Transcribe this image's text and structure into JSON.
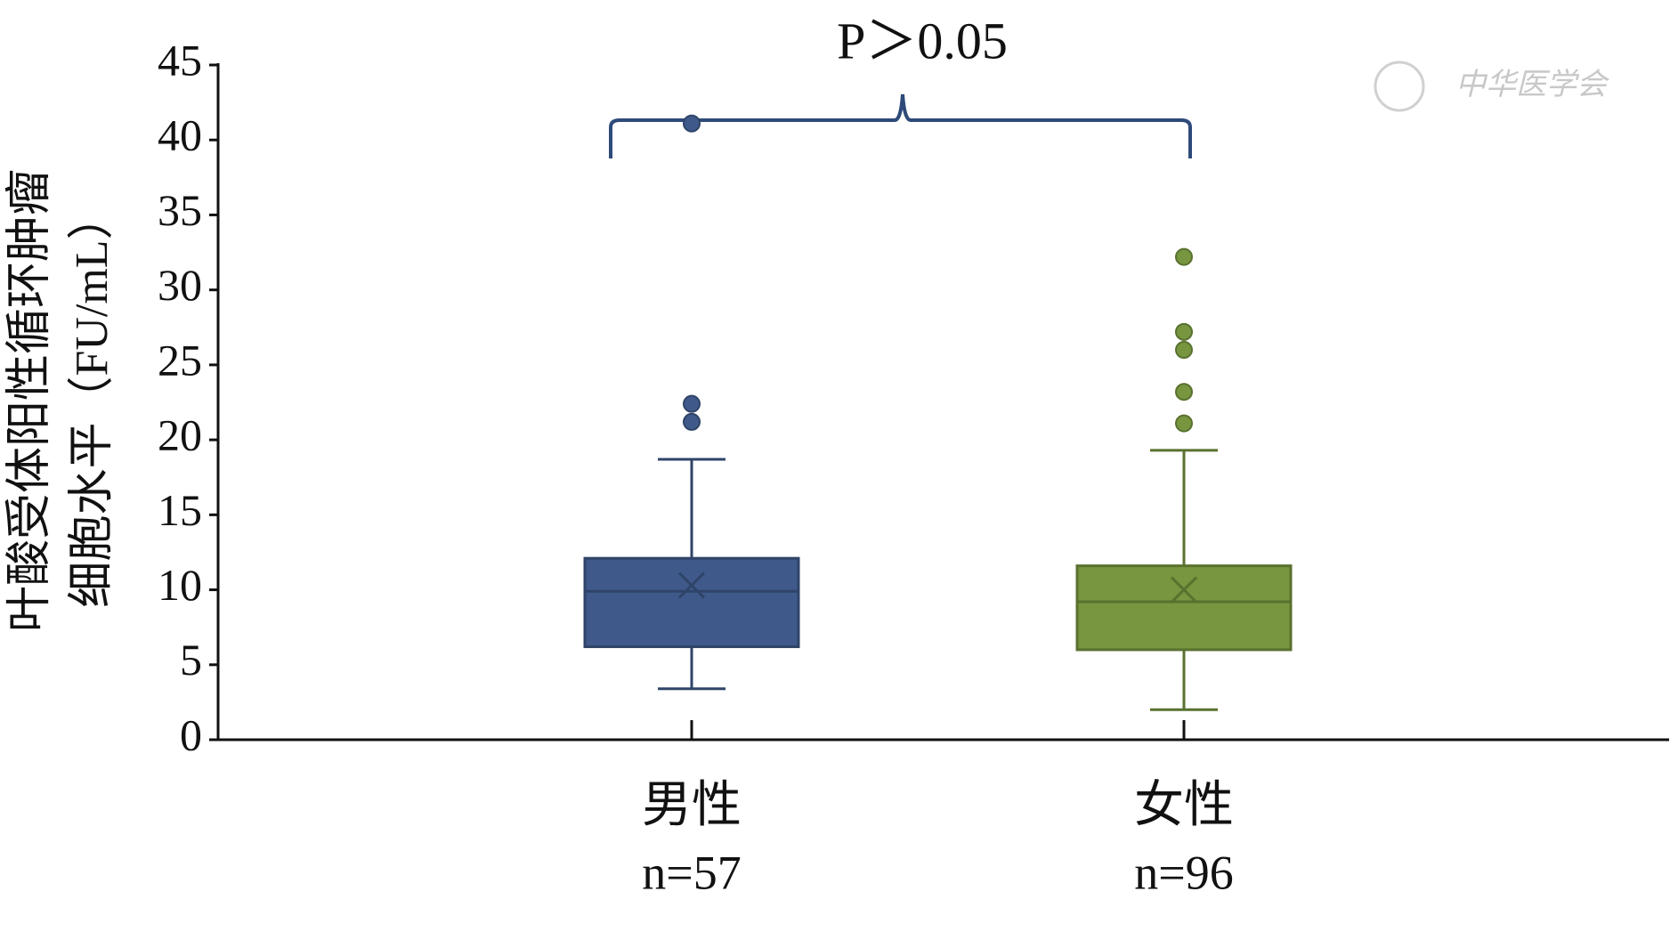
{
  "chart_data": {
    "type": "box",
    "annotation": "P＞0.05",
    "watermark": "中华医学会",
    "y_label": [
      "叶酸受体阳性循环肿瘤",
      "细胞水平（FU/mL）"
    ],
    "categories": [
      "男性",
      "女性"
    ],
    "sample_sizes": [
      "n=57",
      "n=96"
    ],
    "ylim": [
      0,
      45
    ],
    "yticks": [
      0,
      5,
      10,
      15,
      20,
      25,
      30,
      35,
      40,
      45
    ],
    "boxes": [
      {
        "color": "#3f5a8a",
        "whisker_low": 3.4,
        "q1": 6.2,
        "median": 9.9,
        "mean": 10.3,
        "q3": 12.1,
        "whisker_high": 18.7,
        "outliers": [
          21.2,
          22.4,
          41.1
        ]
      },
      {
        "color": "#77963f",
        "whisker_low": 2.0,
        "q1": 6.0,
        "median": 9.2,
        "mean": 10.0,
        "q3": 11.6,
        "whisker_high": 19.3,
        "outliers": [
          21.1,
          23.2,
          26.0,
          27.2,
          32.2
        ]
      }
    ]
  }
}
